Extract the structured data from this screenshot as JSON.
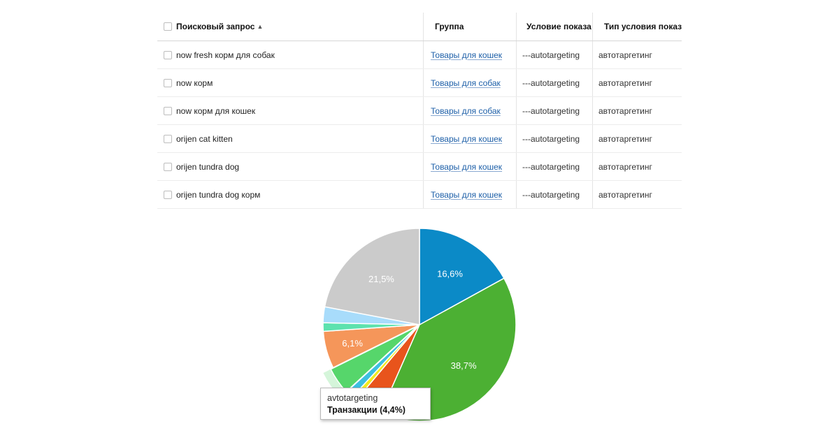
{
  "table": {
    "headers": {
      "query": "Поисковый запрос",
      "group": "Группа",
      "condition": "Условие показа",
      "condition_type": "Тип условия показа"
    },
    "rows": [
      {
        "query": "now fresh корм для собак",
        "group": "Товары для кошек",
        "condition": "---autotargeting",
        "condition_type": "автотаргетинг"
      },
      {
        "query": "now корм",
        "group": "Товары для собак",
        "condition": "---autotargeting",
        "condition_type": "автотаргетинг"
      },
      {
        "query": "now корм для кошек",
        "group": "Товары для собак",
        "condition": "---autotargeting",
        "condition_type": "автотаргетинг"
      },
      {
        "query": "orijen cat kitten",
        "group": "Товары для кошек",
        "condition": "---autotargeting",
        "condition_type": "автотаргетинг"
      },
      {
        "query": "orijen tundra dog",
        "group": "Товары для кошек",
        "condition": "---autotargeting",
        "condition_type": "автотаргетинг"
      },
      {
        "query": "orijen tundra dog корм",
        "group": "Товары для кошек",
        "condition": "---autotargeting",
        "condition_type": "автотаргетинг"
      }
    ]
  },
  "chart_data": {
    "type": "pie",
    "slices": [
      {
        "value": 16.6,
        "label": "16,6%",
        "color": "#0b8ac7"
      },
      {
        "value": 38.7,
        "label": "38,7%",
        "color": "#4cb033"
      },
      {
        "value": 4.4,
        "label": "",
        "color": "#e8541c"
      },
      {
        "value": 0.8,
        "label": "",
        "color": "#f2ea1f"
      },
      {
        "value": 1.2,
        "label": "",
        "color": "#3dbfe0"
      },
      {
        "value": 4.4,
        "label": "",
        "color": "#56d66b",
        "highlighted": true
      },
      {
        "value": 6.1,
        "label": "6,1%",
        "color": "#f5965a"
      },
      {
        "value": 1.4,
        "label": "",
        "color": "#5de2ae"
      },
      {
        "value": 2.6,
        "label": "",
        "color": "#a8dcfb"
      },
      {
        "value": 21.5,
        "label": "21,5%",
        "color": "#cbcbcb"
      }
    ],
    "tooltip": {
      "title": "avtotargeting",
      "value": "Транзакции (4,4%)"
    }
  }
}
